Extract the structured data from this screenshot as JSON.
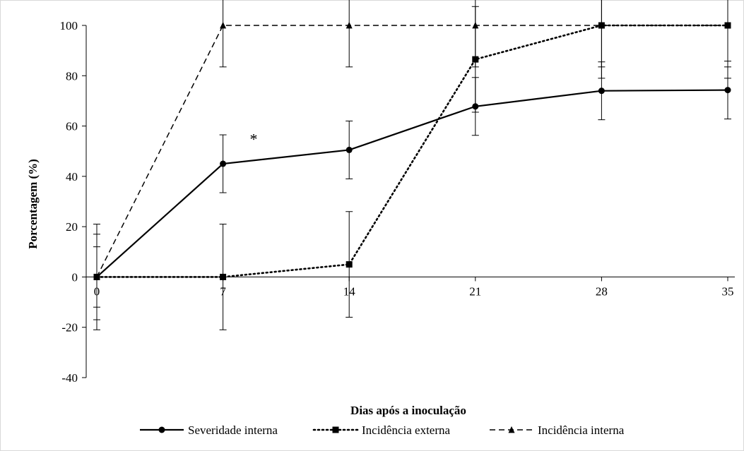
{
  "chart_data": {
    "type": "line",
    "title": "",
    "xlabel": "Dias após a inoculação",
    "ylabel": "Porcentagem (%)",
    "x": [
      0,
      7,
      14,
      21,
      28,
      35
    ],
    "x_tick_labels": [
      "0",
      "7",
      "14",
      "21",
      "28",
      "35"
    ],
    "xlim": [
      0,
      35
    ],
    "ylim": [
      -40,
      100
    ],
    "y_ticks": [
      -40,
      -20,
      0,
      20,
      40,
      60,
      80,
      100
    ],
    "y_tick_labels": [
      "-40",
      "-20",
      "0",
      "20",
      "40",
      "60",
      "80",
      "100"
    ],
    "grid": false,
    "legend_position": "bottom",
    "series": [
      {
        "name": "Severidade interna",
        "values": [
          0,
          45,
          50.5,
          67.8,
          74,
          74.3
        ],
        "error": [
          17,
          11.5,
          11.5,
          11.5,
          11.5,
          11.5
        ],
        "line_style": "solid",
        "marker": "circle",
        "color": "#000000"
      },
      {
        "name": "Incidência externa",
        "values": [
          0,
          0,
          5,
          86.5,
          100,
          100
        ],
        "error": [
          21,
          21,
          21,
          21,
          21,
          21
        ],
        "line_style": "dotted",
        "marker": "square",
        "color": "#000000"
      },
      {
        "name": "Incidência interna",
        "values": [
          0,
          100,
          100,
          100,
          100,
          100
        ],
        "error": [
          12,
          16.5,
          16.5,
          16.5,
          16.5,
          16.5
        ],
        "line_style": "dashed",
        "marker": "triangle",
        "color": "#000000"
      }
    ],
    "annotations": [
      {
        "text": "*",
        "x": 8.7,
        "y": 55
      }
    ]
  }
}
